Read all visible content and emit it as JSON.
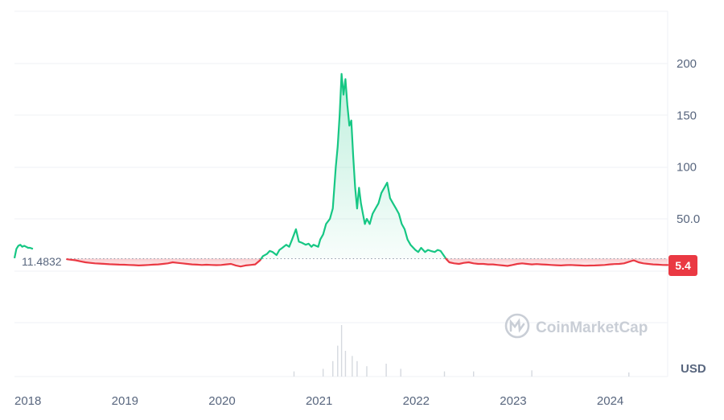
{
  "chart_data": {
    "type": "area",
    "currency_label": "USD",
    "watermark": "CoinMarketCap",
    "y_ticks": [
      {
        "label": "200",
        "value": 200
      },
      {
        "label": "150",
        "value": 150
      },
      {
        "label": "100",
        "value": 100
      },
      {
        "label": "50.0",
        "value": 50
      },
      {
        "label": "5.4",
        "value": 5.4
      }
    ],
    "x_ticks": [
      {
        "label": "2018",
        "t": 2018.0
      },
      {
        "label": "2019",
        "t": 2019.0
      },
      {
        "label": "2020",
        "t": 2020.0
      },
      {
        "label": "2021",
        "t": 2021.0
      },
      {
        "label": "2022",
        "t": 2022.0
      },
      {
        "label": "2023",
        "t": 2023.0
      },
      {
        "label": "2024",
        "t": 2024.0
      }
    ],
    "baseline": {
      "label": "11.4832",
      "value": 11.4832
    },
    "current": {
      "label": "5.4",
      "value": 5.4
    },
    "colors": {
      "up": "#16c784",
      "down": "#ea3943",
      "grid": "#eff2f5",
      "text": "#58667e"
    },
    "series": [
      {
        "name": "",
        "start_segment": [
          [
            2017.87,
            12
          ],
          [
            2017.89,
            21
          ],
          [
            2017.91,
            24
          ],
          [
            2017.93,
            25
          ],
          [
            2017.95,
            23
          ],
          [
            2017.97,
            24
          ],
          [
            2017.99,
            23
          ],
          [
            2018.01,
            22
          ],
          [
            2018.03,
            22
          ],
          [
            2018.06,
            21
          ]
        ],
        "points": [
          [
            2018.41,
            11
          ],
          [
            2018.45,
            10.5
          ],
          [
            2018.5,
            10
          ],
          [
            2018.55,
            9
          ],
          [
            2018.6,
            8
          ],
          [
            2018.65,
            7.5
          ],
          [
            2018.7,
            7
          ],
          [
            2018.75,
            6.8
          ],
          [
            2018.8,
            6.5
          ],
          [
            2018.85,
            6.2
          ],
          [
            2018.9,
            6
          ],
          [
            2018.95,
            5.8
          ],
          [
            2019.0,
            5.7
          ],
          [
            2019.05,
            5.5
          ],
          [
            2019.1,
            5.3
          ],
          [
            2019.15,
            5
          ],
          [
            2019.2,
            5.2
          ],
          [
            2019.25,
            5.5
          ],
          [
            2019.3,
            5.8
          ],
          [
            2019.35,
            6
          ],
          [
            2019.4,
            6.5
          ],
          [
            2019.45,
            7
          ],
          [
            2019.5,
            8
          ],
          [
            2019.55,
            7.5
          ],
          [
            2019.6,
            7
          ],
          [
            2019.65,
            6.5
          ],
          [
            2019.7,
            6
          ],
          [
            2019.75,
            5.8
          ],
          [
            2019.8,
            5.5
          ],
          [
            2019.85,
            5.7
          ],
          [
            2019.9,
            5.5
          ],
          [
            2019.95,
            5.3
          ],
          [
            2020.0,
            5.5
          ],
          [
            2020.05,
            6
          ],
          [
            2020.1,
            6.5
          ],
          [
            2020.15,
            5
          ],
          [
            2020.2,
            4
          ],
          [
            2020.25,
            5
          ],
          [
            2020.3,
            5.5
          ],
          [
            2020.35,
            6
          ],
          [
            2020.4,
            10
          ],
          [
            2020.43,
            14
          ],
          [
            2020.47,
            16
          ],
          [
            2020.5,
            19
          ],
          [
            2020.53,
            18
          ],
          [
            2020.57,
            15
          ],
          [
            2020.6,
            20
          ],
          [
            2020.63,
            22
          ],
          [
            2020.67,
            25
          ],
          [
            2020.7,
            23
          ],
          [
            2020.73,
            30
          ],
          [
            2020.77,
            40
          ],
          [
            2020.8,
            28
          ],
          [
            2020.83,
            27
          ],
          [
            2020.87,
            25
          ],
          [
            2020.9,
            26
          ],
          [
            2020.93,
            23
          ],
          [
            2020.95,
            25
          ],
          [
            2021.0,
            23
          ],
          [
            2021.02,
            30
          ],
          [
            2021.05,
            35
          ],
          [
            2021.08,
            45
          ],
          [
            2021.12,
            50
          ],
          [
            2021.15,
            60
          ],
          [
            2021.18,
            100
          ],
          [
            2021.2,
            120
          ],
          [
            2021.22,
            150
          ],
          [
            2021.24,
            190
          ],
          [
            2021.26,
            170
          ],
          [
            2021.28,
            185
          ],
          [
            2021.3,
            160
          ],
          [
            2021.32,
            140
          ],
          [
            2021.34,
            145
          ],
          [
            2021.36,
            110
          ],
          [
            2021.38,
            80
          ],
          [
            2021.4,
            60
          ],
          [
            2021.42,
            80
          ],
          [
            2021.44,
            65
          ],
          [
            2021.46,
            55
          ],
          [
            2021.48,
            45
          ],
          [
            2021.5,
            50
          ],
          [
            2021.53,
            45
          ],
          [
            2021.56,
            55
          ],
          [
            2021.59,
            60
          ],
          [
            2021.62,
            65
          ],
          [
            2021.65,
            75
          ],
          [
            2021.68,
            80
          ],
          [
            2021.71,
            85
          ],
          [
            2021.74,
            70
          ],
          [
            2021.77,
            65
          ],
          [
            2021.8,
            60
          ],
          [
            2021.83,
            55
          ],
          [
            2021.86,
            45
          ],
          [
            2021.89,
            40
          ],
          [
            2021.92,
            30
          ],
          [
            2021.95,
            25
          ],
          [
            2022.0,
            20
          ],
          [
            2022.03,
            18
          ],
          [
            2022.06,
            22
          ],
          [
            2022.1,
            18
          ],
          [
            2022.13,
            20
          ],
          [
            2022.16,
            19
          ],
          [
            2022.2,
            18
          ],
          [
            2022.23,
            20
          ],
          [
            2022.26,
            19
          ],
          [
            2022.29,
            15
          ],
          [
            2022.32,
            11
          ],
          [
            2022.35,
            8
          ],
          [
            2022.4,
            7
          ],
          [
            2022.45,
            6.5
          ],
          [
            2022.5,
            7.5
          ],
          [
            2022.55,
            8
          ],
          [
            2022.6,
            7
          ],
          [
            2022.65,
            6.5
          ],
          [
            2022.7,
            6.5
          ],
          [
            2022.75,
            6
          ],
          [
            2022.8,
            6
          ],
          [
            2022.85,
            5.5
          ],
          [
            2022.9,
            5
          ],
          [
            2022.95,
            4.5
          ],
          [
            2023.0,
            5.5
          ],
          [
            2023.05,
            6.5
          ],
          [
            2023.1,
            7
          ],
          [
            2023.15,
            6.5
          ],
          [
            2023.2,
            6
          ],
          [
            2023.25,
            6.3
          ],
          [
            2023.3,
            6
          ],
          [
            2023.35,
            5.8
          ],
          [
            2023.4,
            5.5
          ],
          [
            2023.45,
            5.2
          ],
          [
            2023.5,
            5
          ],
          [
            2023.55,
            5.3
          ],
          [
            2023.6,
            5.5
          ],
          [
            2023.65,
            5.2
          ],
          [
            2023.7,
            5
          ],
          [
            2023.75,
            4.8
          ],
          [
            2023.8,
            4.9
          ],
          [
            2023.85,
            5
          ],
          [
            2023.9,
            5.2
          ],
          [
            2023.95,
            5.5
          ],
          [
            2024.0,
            6
          ],
          [
            2024.05,
            6.3
          ],
          [
            2024.1,
            6.5
          ],
          [
            2024.15,
            7
          ],
          [
            2024.2,
            8.5
          ],
          [
            2024.25,
            10
          ],
          [
            2024.3,
            8
          ],
          [
            2024.35,
            7
          ],
          [
            2024.4,
            6.5
          ],
          [
            2024.45,
            6
          ],
          [
            2024.5,
            5.8
          ],
          [
            2024.55,
            5.5
          ],
          [
            2024.6,
            5.4
          ]
        ]
      }
    ],
    "volume_spikes": [
      [
        2020.75,
        0.1
      ],
      [
        2021.05,
        0.15
      ],
      [
        2021.15,
        0.3
      ],
      [
        2021.2,
        0.6
      ],
      [
        2021.24,
        1.0
      ],
      [
        2021.28,
        0.5
      ],
      [
        2021.35,
        0.4
      ],
      [
        2021.4,
        0.3
      ],
      [
        2021.5,
        0.2
      ],
      [
        2021.7,
        0.25
      ],
      [
        2021.85,
        0.15
      ],
      [
        2022.3,
        0.1
      ],
      [
        2022.6,
        0.1
      ],
      [
        2023.2,
        0.12
      ],
      [
        2024.2,
        0.08
      ]
    ]
  }
}
